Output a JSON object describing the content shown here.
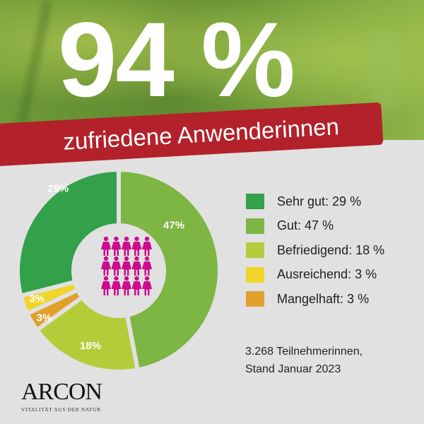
{
  "headline": {
    "value": "94 %",
    "subtitle": "zufriedene Anwenderinnen"
  },
  "chart_data": {
    "type": "pie",
    "donut": true,
    "categories": [
      "Gut",
      "Befriedigend",
      "Mangelhaft",
      "Ausreichend",
      "Sehr gut"
    ],
    "values": [
      47,
      18,
      3,
      3,
      29
    ],
    "labels": [
      "47%",
      "18%",
      "3%",
      "3%",
      "29%"
    ],
    "colors": [
      "#7db643",
      "#b5cc3a",
      "#e0a02a",
      "#f0d42a",
      "#33a04a"
    ],
    "legend": [
      {
        "label": "Sehr gut: 29 %",
        "color": "#33a04a"
      },
      {
        "label": "Gut: 47 %",
        "color": "#7db643"
      },
      {
        "label": "Befriedigend: 18 %",
        "color": "#b5cc3a"
      },
      {
        "label": "Ausreichend: 3 %",
        "color": "#f0d42a"
      },
      {
        "label": "Mangelhaft: 3 %",
        "color": "#e0a02a"
      }
    ],
    "legend_position": "right",
    "center_icon": "women-figures-icon",
    "center_icon_color": "#cc0c8c"
  },
  "note": {
    "line1": "3.268  Teilnehmerinnen,",
    "line2": "Stand Januar 2023"
  },
  "brand": {
    "name": "ARCON",
    "tagline": "VITALITÄT AUS DER NATUR",
    "accent": "#b3212a"
  }
}
